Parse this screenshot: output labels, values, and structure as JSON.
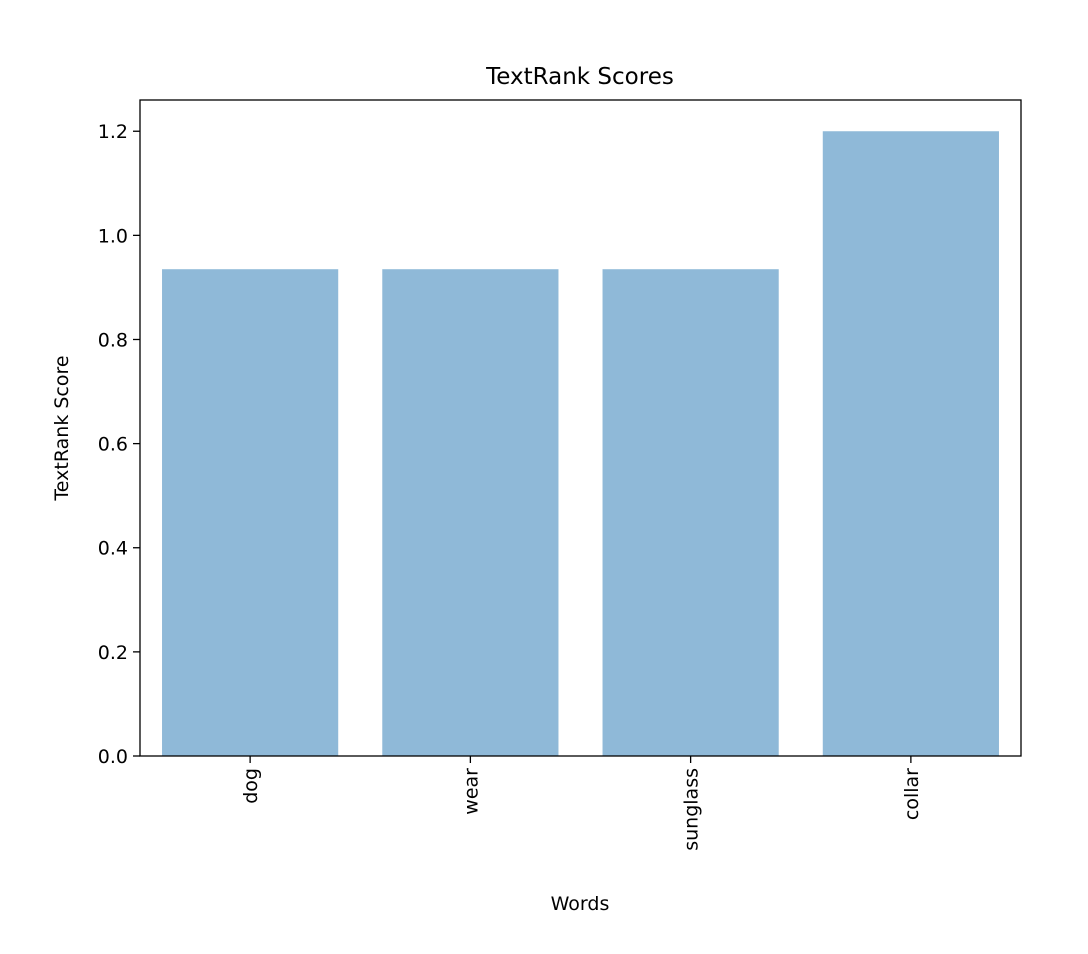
{
  "chart_data": {
    "type": "bar",
    "title": "TextRank Scores",
    "xlabel": "Words",
    "ylabel": "TextRank Score",
    "categories": [
      "dog",
      "wear",
      "sunglass",
      "collar"
    ],
    "values": [
      0.935,
      0.935,
      0.935,
      1.2
    ],
    "ylim": [
      0,
      1.26
    ],
    "yticks": [
      0.0,
      0.2,
      0.4,
      0.6,
      0.8,
      1.0,
      1.2
    ],
    "ytick_labels": [
      "0.0",
      "0.2",
      "0.4",
      "0.6",
      "0.8",
      "1.0",
      "1.2"
    ],
    "bar_color": "#8fb9d8",
    "grid": false,
    "legend": "none"
  }
}
